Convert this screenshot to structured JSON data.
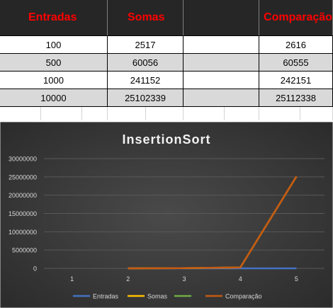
{
  "table": {
    "headers": [
      "Entradas",
      "Somas",
      "",
      "Comparação"
    ],
    "rows": [
      [
        "100",
        "2517",
        "",
        "2616"
      ],
      [
        "500",
        "60056",
        "",
        "60555"
      ],
      [
        "1000",
        "241152",
        "",
        "242151"
      ],
      [
        "10000",
        "25102339",
        "",
        "25112338"
      ]
    ]
  },
  "colors": {
    "header_text": "#FF0000",
    "header_bg": "#262626",
    "row_light": "#FFFFFF",
    "row_dark": "#D9D9D9",
    "chart_bg": "#3A3A3A"
  },
  "chart_data": {
    "type": "line",
    "title": "InsertionSort",
    "x": [
      1,
      2,
      3,
      4,
      5
    ],
    "ylim": [
      0,
      30000000
    ],
    "yticks": [
      0,
      5000000,
      10000000,
      15000000,
      20000000,
      25000000,
      30000000
    ],
    "ytick_labels": [
      "0",
      "5000000",
      "10000000",
      "15000000",
      "20000000",
      "25000000",
      "30000000"
    ],
    "xtick_labels": [
      "1",
      "2",
      "3",
      "4",
      "5"
    ],
    "grid": true,
    "legend": "bottom",
    "series": [
      {
        "name": "Entradas",
        "color": "#4472C4",
        "values": [
          null,
          100,
          500,
          1000,
          10000
        ]
      },
      {
        "name": "Somas",
        "color": "#FFC000",
        "values": [
          null,
          2517,
          60056,
          241152,
          25102339
        ]
      },
      {
        "name": "",
        "color": "#70AD47",
        "values": [
          null,
          null,
          null,
          null,
          null
        ]
      },
      {
        "name": "Comparação",
        "color": "#C55A11",
        "values": [
          null,
          2616,
          60555,
          242151,
          25112338
        ]
      }
    ]
  }
}
